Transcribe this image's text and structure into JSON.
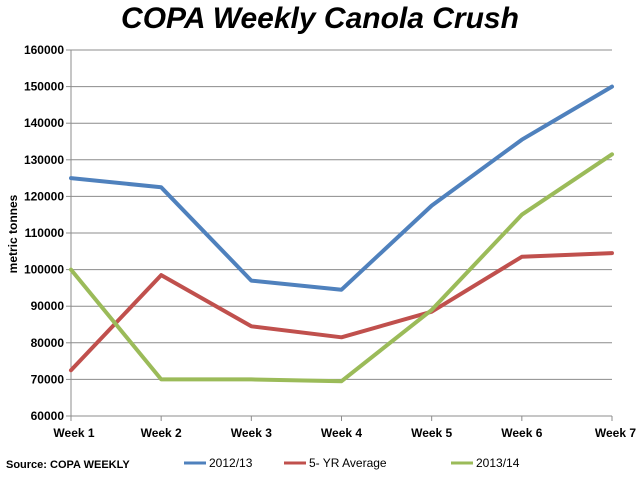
{
  "chart_data": {
    "type": "line",
    "title": "COPA Weekly Canola Crush",
    "ylabel": "metric tonnes",
    "xlabel": "",
    "categories": [
      "Week 1",
      "Week 2",
      "Week 3",
      "Week 4",
      "Week 5",
      "Week 6",
      "Week 7"
    ],
    "ylim": [
      60000,
      160000
    ],
    "yticks": [
      60000,
      70000,
      80000,
      90000,
      100000,
      110000,
      120000,
      130000,
      140000,
      150000,
      160000
    ],
    "grid": true,
    "legend_position": "bottom",
    "series": [
      {
        "name": "2012/13",
        "color": "#4f81bd",
        "values": [
          125000,
          122500,
          97000,
          94500,
          117500,
          135500,
          150000
        ]
      },
      {
        "name": "5- YR Average",
        "color": "#c0504d",
        "values": [
          72500,
          98500,
          84500,
          81500,
          88500,
          103500,
          104500
        ]
      },
      {
        "name": "2013/14",
        "color": "#9bbb59",
        "values": [
          100000,
          70000,
          70000,
          69500,
          89000,
          115000,
          131500
        ]
      }
    ]
  },
  "source_note": "Source: COPA WEEKLY"
}
